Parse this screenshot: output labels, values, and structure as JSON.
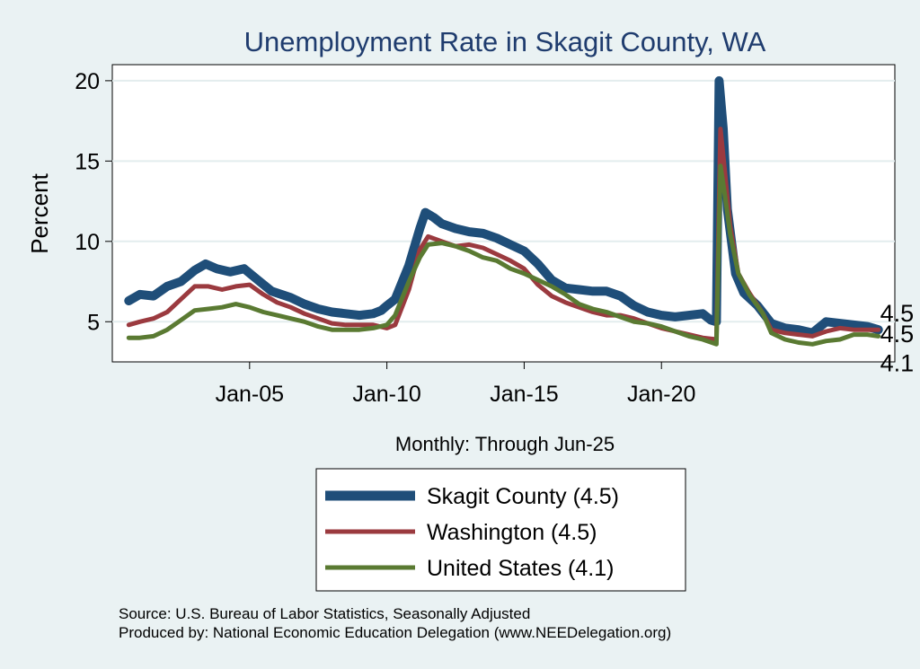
{
  "chart_data": {
    "type": "line",
    "title": "Unemployment Rate in Skagit  County, WA",
    "ylabel": "Percent",
    "xlabel": "Monthly: Through Jun-25",
    "ylim": [
      2.5,
      21
    ],
    "xlim": [
      2000.0,
      2028.5
    ],
    "yticks": [
      5,
      10,
      15,
      20
    ],
    "xticks": [
      {
        "label": "Jan-05",
        "value": 2005
      },
      {
        "label": "Jan-10",
        "value": 2010
      },
      {
        "label": "Jan-15",
        "value": 2015
      },
      {
        "label": "Jan-20",
        "value": 2020
      }
    ],
    "grid": true,
    "series": [
      {
        "name": "Skagit  County",
        "legend_label": "Skagit  County (4.5)",
        "end_label": "4.5",
        "color": "#1f4e79",
        "points": [
          [
            2000.6,
            6.3
          ],
          [
            2001.0,
            6.7
          ],
          [
            2001.5,
            6.6
          ],
          [
            2002.0,
            7.2
          ],
          [
            2002.5,
            7.5
          ],
          [
            2003.0,
            8.2
          ],
          [
            2003.4,
            8.6
          ],
          [
            2003.8,
            8.3
          ],
          [
            2004.3,
            8.1
          ],
          [
            2004.8,
            8.3
          ],
          [
            2005.3,
            7.6
          ],
          [
            2005.8,
            6.9
          ],
          [
            2006.5,
            6.5
          ],
          [
            2007.0,
            6.1
          ],
          [
            2007.5,
            5.8
          ],
          [
            2008.0,
            5.6
          ],
          [
            2008.5,
            5.5
          ],
          [
            2009.0,
            5.4
          ],
          [
            2009.5,
            5.5
          ],
          [
            2009.8,
            5.7
          ],
          [
            2010.0,
            6.0
          ],
          [
            2010.3,
            6.4
          ],
          [
            2010.8,
            8.5
          ],
          [
            2011.2,
            10.8
          ],
          [
            2011.4,
            11.8
          ],
          [
            2011.7,
            11.5
          ],
          [
            2012.0,
            11.1
          ],
          [
            2012.5,
            10.8
          ],
          [
            2013.0,
            10.6
          ],
          [
            2013.5,
            10.5
          ],
          [
            2014.0,
            10.2
          ],
          [
            2014.5,
            9.8
          ],
          [
            2015.0,
            9.4
          ],
          [
            2015.5,
            8.6
          ],
          [
            2016.0,
            7.6
          ],
          [
            2016.5,
            7.1
          ],
          [
            2017.0,
            7.0
          ],
          [
            2017.5,
            6.9
          ],
          [
            2018.0,
            6.9
          ],
          [
            2018.5,
            6.6
          ],
          [
            2019.0,
            6.0
          ],
          [
            2019.5,
            5.6
          ],
          [
            2020.0,
            5.4
          ],
          [
            2020.5,
            5.3
          ],
          [
            2021.0,
            5.4
          ],
          [
            2021.5,
            5.5
          ],
          [
            2021.8,
            5.1
          ],
          [
            2022.0,
            5.0
          ],
          [
            2022.1,
            20.0
          ],
          [
            2022.25,
            17.0
          ],
          [
            2022.4,
            12.0
          ],
          [
            2022.7,
            8.0
          ],
          [
            2023.0,
            6.8
          ],
          [
            2023.5,
            6.0
          ],
          [
            2024.0,
            4.9
          ],
          [
            2024.5,
            4.6
          ],
          [
            2025.0,
            4.5
          ],
          [
            2025.5,
            4.3
          ],
          [
            2026.0,
            5.0
          ],
          [
            2026.5,
            4.9
          ],
          [
            2027.0,
            4.8
          ],
          [
            2027.5,
            4.7
          ],
          [
            2027.9,
            4.5
          ]
        ]
      },
      {
        "name": "Washington",
        "legend_label": "Washington (4.5)",
        "end_label": "4.5",
        "color": "#9b3a3f",
        "points": [
          [
            2000.6,
            4.8
          ],
          [
            2001.0,
            5.0
          ],
          [
            2001.5,
            5.2
          ],
          [
            2002.0,
            5.6
          ],
          [
            2002.5,
            6.4
          ],
          [
            2003.0,
            7.2
          ],
          [
            2003.5,
            7.2
          ],
          [
            2004.0,
            7.0
          ],
          [
            2004.5,
            7.2
          ],
          [
            2005.0,
            7.3
          ],
          [
            2005.5,
            6.7
          ],
          [
            2006.0,
            6.2
          ],
          [
            2006.5,
            5.9
          ],
          [
            2007.0,
            5.5
          ],
          [
            2007.5,
            5.2
          ],
          [
            2008.0,
            4.9
          ],
          [
            2008.5,
            4.8
          ],
          [
            2009.0,
            4.8
          ],
          [
            2009.5,
            4.8
          ],
          [
            2010.0,
            4.6
          ],
          [
            2010.3,
            4.8
          ],
          [
            2010.8,
            7.0
          ],
          [
            2011.2,
            9.5
          ],
          [
            2011.5,
            10.3
          ],
          [
            2012.0,
            10.0
          ],
          [
            2012.5,
            9.7
          ],
          [
            2013.0,
            9.8
          ],
          [
            2013.5,
            9.6
          ],
          [
            2014.0,
            9.2
          ],
          [
            2014.5,
            8.8
          ],
          [
            2015.0,
            8.3
          ],
          [
            2015.5,
            7.3
          ],
          [
            2016.0,
            6.6
          ],
          [
            2016.5,
            6.2
          ],
          [
            2017.0,
            5.9
          ],
          [
            2017.5,
            5.6
          ],
          [
            2018.0,
            5.4
          ],
          [
            2018.5,
            5.4
          ],
          [
            2019.0,
            5.2
          ],
          [
            2019.5,
            4.9
          ],
          [
            2020.0,
            4.6
          ],
          [
            2020.5,
            4.4
          ],
          [
            2021.0,
            4.2
          ],
          [
            2021.5,
            4.0
          ],
          [
            2022.0,
            3.9
          ],
          [
            2022.15,
            17.0
          ],
          [
            2022.3,
            14.5
          ],
          [
            2022.5,
            11.0
          ],
          [
            2022.8,
            8.0
          ],
          [
            2023.2,
            6.8
          ],
          [
            2023.7,
            5.5
          ],
          [
            2024.0,
            4.5
          ],
          [
            2024.5,
            4.3
          ],
          [
            2025.0,
            4.2
          ],
          [
            2025.5,
            4.1
          ],
          [
            2026.0,
            4.4
          ],
          [
            2026.5,
            4.6
          ],
          [
            2027.0,
            4.5
          ],
          [
            2027.5,
            4.5
          ],
          [
            2027.9,
            4.5
          ]
        ]
      },
      {
        "name": "United States",
        "legend_label": "United States (4.1)",
        "end_label": "4.1",
        "color": "#5a7a32",
        "points": [
          [
            2000.6,
            4.0
          ],
          [
            2001.0,
            4.0
          ],
          [
            2001.5,
            4.1
          ],
          [
            2002.0,
            4.5
          ],
          [
            2002.5,
            5.1
          ],
          [
            2003.0,
            5.7
          ],
          [
            2003.5,
            5.8
          ],
          [
            2004.0,
            5.9
          ],
          [
            2004.5,
            6.1
          ],
          [
            2005.0,
            5.9
          ],
          [
            2005.5,
            5.6
          ],
          [
            2006.0,
            5.4
          ],
          [
            2006.5,
            5.2
          ],
          [
            2007.0,
            5.0
          ],
          [
            2007.5,
            4.7
          ],
          [
            2008.0,
            4.5
          ],
          [
            2008.5,
            4.5
          ],
          [
            2009.0,
            4.5
          ],
          [
            2009.5,
            4.6
          ],
          [
            2010.0,
            4.8
          ],
          [
            2010.3,
            5.4
          ],
          [
            2010.8,
            7.5
          ],
          [
            2011.2,
            9.0
          ],
          [
            2011.5,
            9.8
          ],
          [
            2012.0,
            9.9
          ],
          [
            2012.5,
            9.7
          ],
          [
            2013.0,
            9.4
          ],
          [
            2013.5,
            9.0
          ],
          [
            2014.0,
            8.8
          ],
          [
            2014.5,
            8.3
          ],
          [
            2015.0,
            8.0
          ],
          [
            2015.5,
            7.6
          ],
          [
            2016.0,
            7.2
          ],
          [
            2016.5,
            6.7
          ],
          [
            2017.0,
            6.1
          ],
          [
            2017.5,
            5.8
          ],
          [
            2018.0,
            5.6
          ],
          [
            2018.5,
            5.3
          ],
          [
            2019.0,
            5.0
          ],
          [
            2019.5,
            4.9
          ],
          [
            2020.0,
            4.7
          ],
          [
            2020.5,
            4.4
          ],
          [
            2021.0,
            4.1
          ],
          [
            2021.5,
            3.9
          ],
          [
            2022.0,
            3.6
          ],
          [
            2022.15,
            14.7
          ],
          [
            2022.3,
            13.0
          ],
          [
            2022.5,
            10.5
          ],
          [
            2022.8,
            8.0
          ],
          [
            2023.2,
            6.7
          ],
          [
            2023.7,
            5.5
          ],
          [
            2024.0,
            4.3
          ],
          [
            2024.5,
            3.9
          ],
          [
            2025.0,
            3.7
          ],
          [
            2025.5,
            3.6
          ],
          [
            2026.0,
            3.8
          ],
          [
            2026.5,
            3.9
          ],
          [
            2027.0,
            4.2
          ],
          [
            2027.5,
            4.2
          ],
          [
            2027.9,
            4.1
          ]
        ]
      }
    ]
  },
  "source_lines": [
    "Source: U.S. Bureau of Labor Statistics, Seasonally Adjusted",
    "Produced by: National Economic Education Delegation (www.NEEDelegation.org)"
  ]
}
